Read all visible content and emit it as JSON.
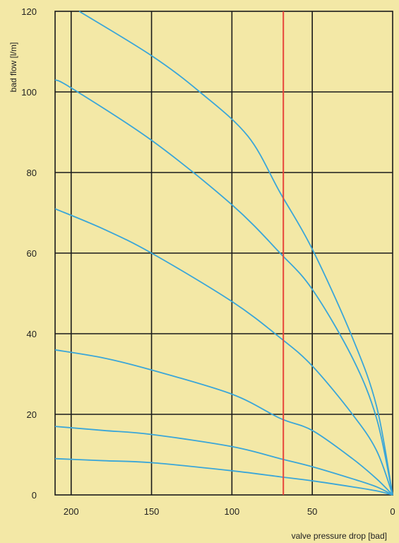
{
  "chart_data": {
    "type": "line",
    "title": "",
    "xlabel": "valve pressure drop [bad]",
    "ylabel": "bad flow [l/m]",
    "xlim": [
      210,
      0
    ],
    "ylim": [
      0,
      120
    ],
    "x_ticks": [
      200,
      150,
      100,
      50,
      0
    ],
    "y_ticks": [
      0,
      20,
      40,
      60,
      80,
      100,
      120
    ],
    "grid": true,
    "colors": {
      "background": "#f3e8a6",
      "grid": "#1a1a1a",
      "curves": "#3aa6d8",
      "marker_line": "#e8433a"
    },
    "series": [
      {
        "values": [
          [
            195,
            120
          ],
          [
            150,
            109
          ],
          [
            120,
            100
          ],
          [
            90,
            89
          ],
          [
            70,
            75
          ],
          [
            50,
            61
          ],
          [
            25,
            39
          ],
          [
            10,
            22
          ],
          [
            0,
            0
          ]
        ]
      },
      {
        "values": [
          [
            210,
            103
          ],
          [
            200,
            101
          ],
          [
            150,
            88
          ],
          [
            100,
            72
          ],
          [
            70,
            60
          ],
          [
            50,
            51
          ],
          [
            25,
            34
          ],
          [
            10,
            19
          ],
          [
            0,
            0
          ]
        ]
      },
      {
        "values": [
          [
            210,
            71
          ],
          [
            180,
            66
          ],
          [
            150,
            60
          ],
          [
            100,
            48
          ],
          [
            70,
            39
          ],
          [
            50,
            32
          ],
          [
            25,
            20
          ],
          [
            10,
            11
          ],
          [
            0,
            0
          ]
        ]
      },
      {
        "values": [
          [
            210,
            36
          ],
          [
            180,
            34
          ],
          [
            150,
            31
          ],
          [
            100,
            25
          ],
          [
            70,
            19
          ],
          [
            50,
            16
          ],
          [
            25,
            9
          ],
          [
            10,
            4
          ],
          [
            0,
            0
          ]
        ]
      },
      {
        "values": [
          [
            210,
            17
          ],
          [
            180,
            16
          ],
          [
            150,
            15
          ],
          [
            100,
            12
          ],
          [
            70,
            9
          ],
          [
            50,
            7
          ],
          [
            25,
            4
          ],
          [
            10,
            2
          ],
          [
            0,
            0
          ]
        ]
      },
      {
        "values": [
          [
            210,
            9
          ],
          [
            180,
            8.5
          ],
          [
            150,
            8
          ],
          [
            100,
            6
          ],
          [
            70,
            4.5
          ],
          [
            50,
            3.5
          ],
          [
            25,
            2
          ],
          [
            10,
            1
          ],
          [
            0,
            0
          ]
        ]
      }
    ],
    "marker_line": {
      "x": 68
    }
  }
}
